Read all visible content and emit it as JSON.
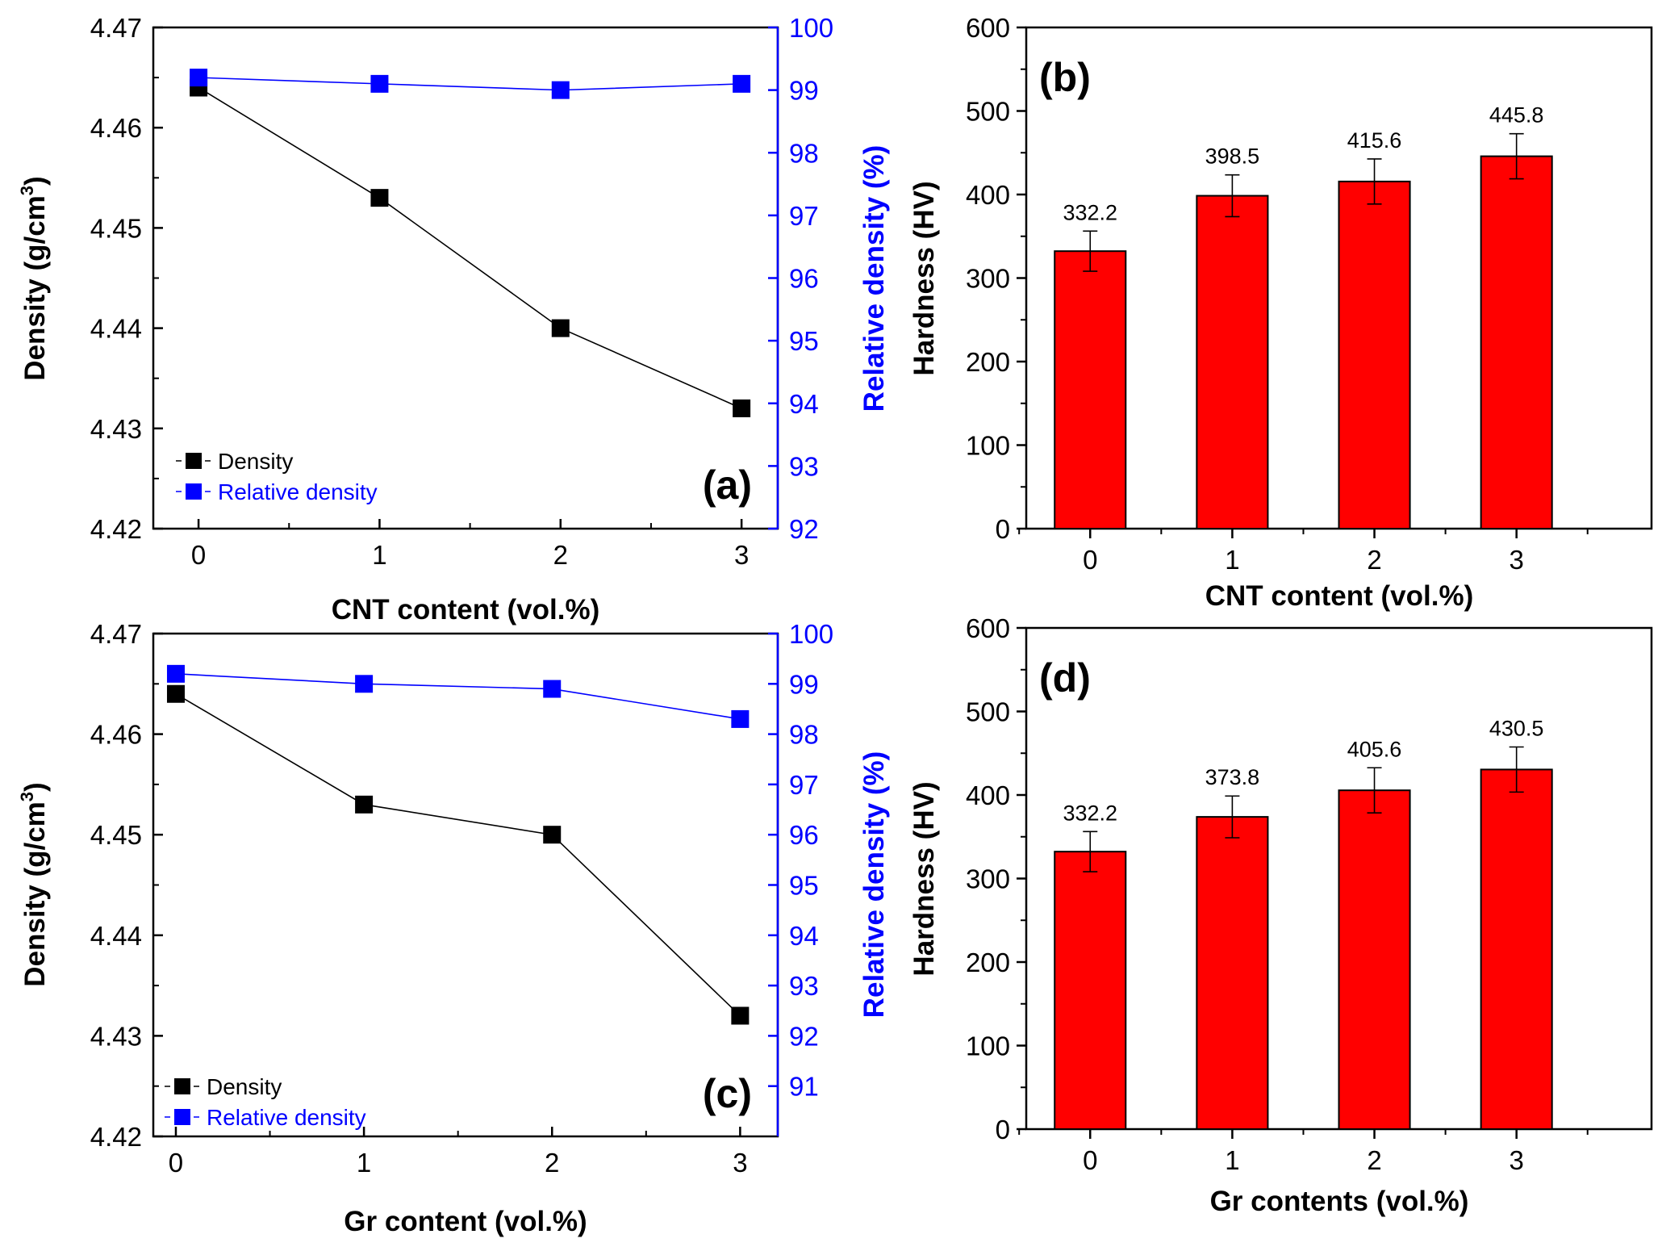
{
  "chart_data": [
    {
      "panel": "(a)",
      "type": "line",
      "x": [
        0,
        1,
        2,
        3
      ],
      "xlabel": "CNT content (vol.%)",
      "ylabel": "Density (g/cm³)",
      "ylabel_main": "Density (g/cm",
      "ylabel_sup": "3",
      "ylabel_close": ")",
      "ylim": [
        4.42,
        4.47
      ],
      "yticks": [
        "4.42",
        "4.43",
        "4.44",
        "4.45",
        "4.46",
        "4.47"
      ],
      "xticks": [
        "0",
        "1",
        "2",
        "3"
      ],
      "y2label": "Relative density (%)",
      "y2lim": [
        92,
        100
      ],
      "y2ticks": [
        "92",
        "93",
        "94",
        "95",
        "96",
        "97",
        "98",
        "99",
        "100"
      ],
      "series": [
        {
          "name": "Density",
          "axis": "left",
          "color": "#000000",
          "values": [
            4.464,
            4.453,
            4.44,
            4.432
          ]
        },
        {
          "name": "Relative density",
          "axis": "right",
          "color": "#0000ff",
          "values": [
            99.2,
            99.1,
            99.0,
            99.1
          ]
        }
      ],
      "legend_location": "bottom-left"
    },
    {
      "panel": "(b)",
      "type": "bar",
      "categories": [
        "0",
        "1",
        "2",
        "3"
      ],
      "values": [
        332.2,
        398.5,
        415.6,
        445.8
      ],
      "data_labels": [
        "332.2",
        "398.5",
        "415.6",
        "445.8"
      ],
      "errors": [
        24,
        25,
        27,
        27
      ],
      "xlabel": "CNT content (vol.%)",
      "ylabel": "Hardness (HV)",
      "ylim": [
        0,
        600
      ],
      "yticks": [
        "0",
        "100",
        "200",
        "300",
        "400",
        "500",
        "600"
      ],
      "bar_color": "#ff0000"
    },
    {
      "panel": "(c)",
      "type": "line",
      "x": [
        0,
        1,
        2,
        3
      ],
      "xlabel": "Gr content (vol.%)",
      "ylabel": "Density (g/cm³)",
      "ylabel_main": "Density (g/cm",
      "ylabel_sup": "3",
      "ylabel_close": ")",
      "ylim": [
        4.42,
        4.47
      ],
      "yticks": [
        "4.42",
        "4.43",
        "4.44",
        "4.45",
        "4.46",
        "4.47"
      ],
      "xticks": [
        "0",
        "1",
        "2",
        "3"
      ],
      "y2label": "Relative density (%)",
      "y2lim": [
        90,
        100
      ],
      "y2ticks": [
        "91",
        "92",
        "93",
        "94",
        "95",
        "96",
        "97",
        "98",
        "99",
        "100"
      ],
      "series": [
        {
          "name": "Density",
          "axis": "left",
          "color": "#000000",
          "values": [
            4.464,
            4.453,
            4.45,
            4.432
          ]
        },
        {
          "name": "Relative density",
          "axis": "right",
          "color": "#0000ff",
          "values": [
            99.2,
            99.0,
            98.9,
            98.3
          ]
        }
      ],
      "legend_location": "bottom-left"
    },
    {
      "panel": "(d)",
      "type": "bar",
      "categories": [
        "0",
        "1",
        "2",
        "3"
      ],
      "values": [
        332.2,
        373.8,
        405.6,
        430.5
      ],
      "data_labels": [
        "332.2",
        "373.8",
        "405.6",
        "430.5"
      ],
      "errors": [
        24,
        25,
        27,
        27
      ],
      "xlabel": "Gr contents (vol.%)",
      "ylabel": "Hardness (HV)",
      "ylim": [
        0,
        600
      ],
      "yticks": [
        "0",
        "100",
        "200",
        "300",
        "400",
        "500",
        "600"
      ],
      "bar_color": "#ff0000"
    }
  ]
}
